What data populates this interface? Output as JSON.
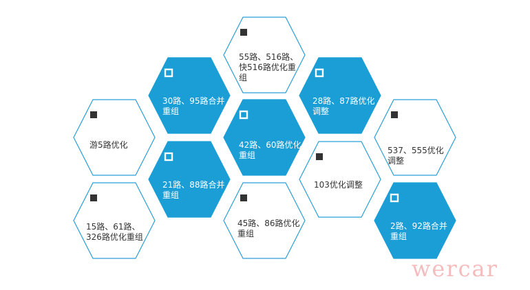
{
  "colors": {
    "fill_dark": "#1b9ed6",
    "stroke": "#2a9fd6",
    "fill_light": "#ffffff",
    "text_light": "#333333",
    "text_dark": "#ffffff",
    "marker_light": "#333333"
  },
  "hexagons": [
    {
      "id": "h1",
      "style": "light",
      "label": "55路、516路、\n快516路优化重\n组"
    },
    {
      "id": "h2",
      "style": "dark",
      "label": "30路、95路合并\n重组"
    },
    {
      "id": "h3",
      "style": "dark",
      "label": "28路、87路优化\n调整"
    },
    {
      "id": "h4",
      "style": "light",
      "label": "游5路优化"
    },
    {
      "id": "h5",
      "style": "dark",
      "label": "42路、60路优化\n重组"
    },
    {
      "id": "h6",
      "style": "light",
      "label": "537、555优化\n调整"
    },
    {
      "id": "h7",
      "style": "dark",
      "label": "21路、88路合并\n重组"
    },
    {
      "id": "h8",
      "style": "light",
      "label": "103优化调整"
    },
    {
      "id": "h9",
      "style": "light",
      "label": "15路、61路、\n326路优化重组"
    },
    {
      "id": "h10",
      "style": "light",
      "label": "45路、86路优化\n重组"
    },
    {
      "id": "h11",
      "style": "dark",
      "label": "2路、92路合并\n重组"
    }
  ],
  "watermark": "wercar"
}
